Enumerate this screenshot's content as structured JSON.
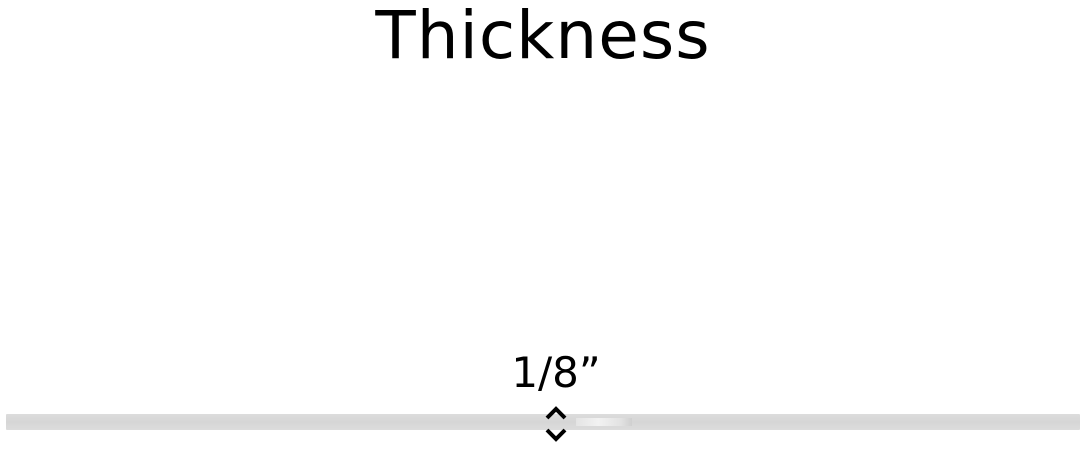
{
  "title": "Thickness",
  "dimension": {
    "label": "1/8”"
  },
  "icons": {
    "indicator": "double-arrow-vertical-icon"
  },
  "colors": {
    "background": "#ffffff",
    "sheet": "#d8d8d8",
    "text": "#000000"
  }
}
